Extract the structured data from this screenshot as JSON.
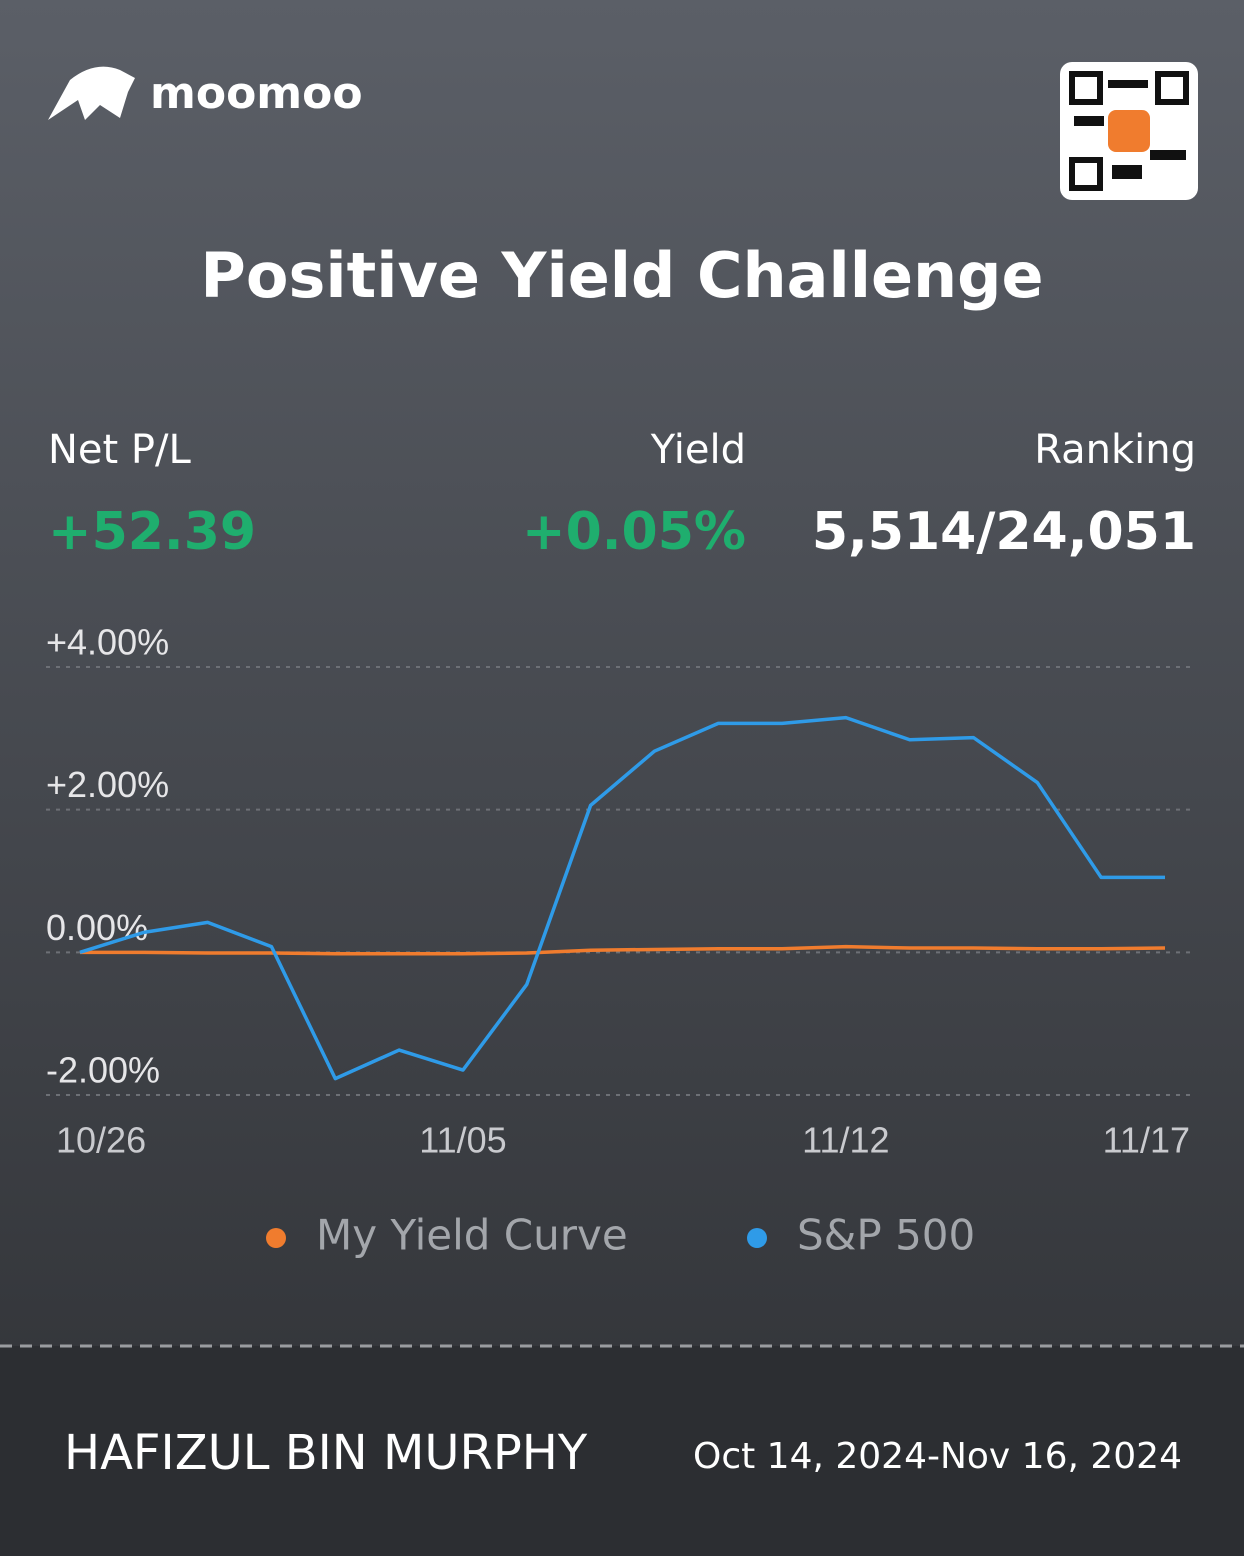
{
  "header": {
    "brand": "moomoo",
    "title": "Positive Yield Challenge"
  },
  "stats": [
    {
      "label": "Net P/L",
      "value": "+52.39"
    },
    {
      "label": "Yield",
      "value": "+0.05%"
    },
    {
      "label": "Ranking",
      "value": "5,514/24,051"
    }
  ],
  "chart_data": {
    "type": "line",
    "categories": [
      "10/26",
      null,
      null,
      null,
      null,
      null,
      "11/05",
      null,
      null,
      null,
      null,
      null,
      "11/12",
      null,
      null,
      null,
      null,
      "11/17"
    ],
    "series": [
      {
        "name": "My Yield Curve",
        "color": "#f07c2e",
        "values": [
          0,
          0,
          -0.01,
          -0.01,
          -0.02,
          -0.02,
          -0.02,
          -0.01,
          0.03,
          0.04,
          0.05,
          0.05,
          0.08,
          0.06,
          0.06,
          0.05,
          0.05,
          0.06
        ]
      },
      {
        "name": "S&P 500",
        "color": "#2f9be8",
        "values": [
          0,
          0.28,
          0.42,
          0.08,
          -1.77,
          -1.37,
          -1.65,
          -0.45,
          2.06,
          2.82,
          3.21,
          3.21,
          3.29,
          2.98,
          3.01,
          2.38,
          1.05,
          1.05
        ]
      }
    ],
    "ylim": [
      -2,
      4
    ],
    "yticks": [
      {
        "value": 4,
        "label": "+4.00%"
      },
      {
        "value": 2,
        "label": "+2.00%"
      },
      {
        "value": 0,
        "label": "0.00%"
      },
      {
        "value": -2,
        "label": "-2.00%"
      }
    ],
    "grid": true
  },
  "footer": {
    "name": "HAFIZUL BIN MURPHY",
    "period": "Oct 14, 2024-Nov 16, 2024"
  }
}
